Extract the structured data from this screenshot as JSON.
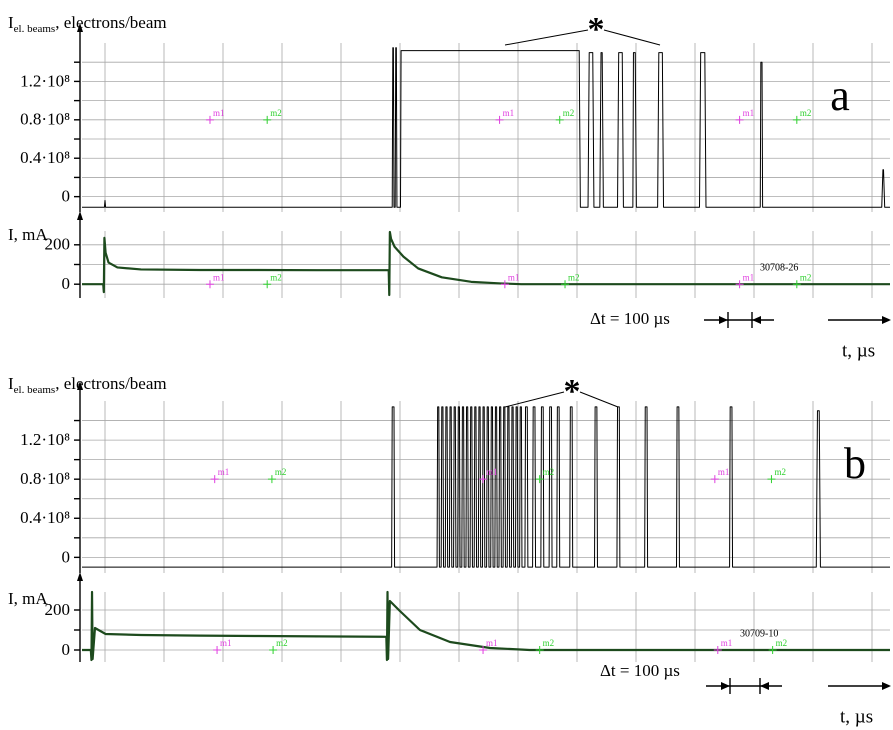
{
  "chart_data": [
    {
      "type": "line",
      "ylabel": "I",
      "ylabel_sub": "el. beams",
      "ylabel_suffix": ", electrons/beam",
      "panel_label": "a",
      "star": "*",
      "grid": true,
      "color": "#000000",
      "xlim": [
        0,
        1370
      ],
      "ylim": [
        -16000000,
        160000000
      ],
      "yticks": [
        {
          "value": 120000000,
          "label": "1.2·10⁸"
        },
        {
          "value": 80000000,
          "label": "0.8·10⁸"
        },
        {
          "value": 40000000,
          "label": "0.4·10⁸"
        },
        0
      ],
      "x": [
        0,
        38,
        39,
        40,
        526,
        527,
        528,
        529,
        531,
        532,
        533,
        534,
        540,
        541,
        843,
        845,
        858,
        860,
        866,
        868,
        878,
        880,
        882,
        884,
        908,
        910,
        916,
        918,
        934,
        935,
        938,
        940,
        976,
        978,
        984,
        986,
        1047,
        1049,
        1056,
        1058,
        1150,
        1151,
        1153,
        1154,
        1356,
        1358,
        1359,
        1361,
        1370
      ],
      "values": [
        -11000000,
        -11000000,
        -4000000,
        -11000000,
        -11000000,
        155000000,
        155000000,
        -11000000,
        -11000000,
        155000000,
        155000000,
        -11000000,
        -11000000,
        152000000,
        152000000,
        -11000000,
        -11000000,
        150000000,
        150000000,
        -11000000,
        -11000000,
        150000000,
        150000000,
        -11000000,
        -11000000,
        150000000,
        150000000,
        -11000000,
        -11000000,
        150000000,
        150000000,
        -11000000,
        -11000000,
        150000000,
        150000000,
        -11000000,
        -11000000,
        150000000,
        150000000,
        -11000000,
        -11000000,
        140000000,
        140000000,
        -11000000,
        -11000000,
        28000000,
        28000000,
        -11000000,
        -11000000
      ],
      "markers": [
        {
          "label": "m1",
          "x": 217,
          "y": 80000000,
          "color": "#e040e0"
        },
        {
          "label": "m2",
          "x": 314,
          "y": 80000000,
          "color": "#30d030"
        },
        {
          "label": "m1",
          "x": 708,
          "y": 80000000,
          "color": "#e040e0"
        },
        {
          "label": "m2",
          "x": 810,
          "y": 80000000,
          "color": "#30d030"
        },
        {
          "label": "m1",
          "x": 1115,
          "y": 80000000,
          "color": "#e040e0"
        },
        {
          "label": "m2",
          "x": 1212,
          "y": 80000000,
          "color": "#30d030"
        }
      ]
    },
    {
      "type": "line",
      "ylabel": "I, mA",
      "id_label": "30708-26",
      "delta_label": "Δt = 100 µs",
      "time_label": "t, µs",
      "grid": true,
      "color": "#1d4a1d",
      "xlim": [
        0,
        1370
      ],
      "ylim": [
        -70,
        270
      ],
      "yticks": [
        200,
        0
      ],
      "x": [
        0,
        36,
        37,
        38,
        40,
        45,
        60,
        100,
        200,
        300,
        400,
        520,
        521,
        522,
        524,
        530,
        545,
        570,
        610,
        660,
        710,
        745,
        1370
      ],
      "values": [
        0,
        0,
        -40,
        235,
        160,
        110,
        85,
        75,
        72,
        72,
        71,
        71,
        -55,
        265,
        230,
        190,
        140,
        80,
        35,
        12,
        4,
        0,
        0
      ],
      "markers": [
        {
          "label": "m1",
          "x": 217,
          "y": 0,
          "color": "#e040e0"
        },
        {
          "label": "m2",
          "x": 314,
          "y": 0,
          "color": "#30d030"
        },
        {
          "label": "m1",
          "x": 717,
          "y": 0,
          "color": "#e040e0"
        },
        {
          "label": "m2",
          "x": 819,
          "y": 0,
          "color": "#30d030"
        },
        {
          "label": "m1",
          "x": 1115,
          "y": 0,
          "color": "#e040e0"
        },
        {
          "label": "m2",
          "x": 1212,
          "y": 0,
          "color": "#30d030"
        }
      ]
    },
    {
      "type": "line",
      "ylabel": "I",
      "ylabel_sub": "el. beams",
      "ylabel_suffix": ", electrons/beam",
      "panel_label": "b",
      "star": "*",
      "grid": true,
      "color": "#000000",
      "xlim": [
        0,
        1370
      ],
      "ylim": [
        -16000000,
        160000000
      ],
      "yticks": [
        {
          "value": 120000000,
          "label": "1.2·10⁸"
        },
        {
          "value": 80000000,
          "label": "0.8·10⁸"
        },
        {
          "value": 40000000,
          "label": "0.4·10⁸"
        },
        0
      ],
      "x": [
        0,
        525,
        526,
        529,
        530,
        602,
        603,
        605,
        606,
        609,
        610,
        612,
        613,
        616,
        617,
        619,
        620,
        623,
        624,
        626,
        627,
        630,
        631,
        633,
        634,
        637,
        638,
        640,
        641,
        644,
        645,
        647,
        648,
        651,
        652,
        654,
        655,
        658,
        659,
        661,
        662,
        665,
        666,
        668,
        669,
        672,
        673,
        675,
        676,
        679,
        680,
        682,
        683,
        686,
        687,
        689,
        690,
        693,
        694,
        696,
        697,
        700,
        701,
        703,
        704,
        707,
        708,
        710,
        711,
        714,
        715,
        717,
        718,
        721,
        722,
        724,
        725,
        728,
        729,
        731,
        732,
        735,
        736,
        738,
        739,
        742,
        743,
        745,
        746,
        751,
        752,
        755,
        756,
        764,
        765,
        768,
        769,
        778,
        779,
        782,
        783,
        792,
        793,
        796,
        797,
        805,
        806,
        809,
        810,
        827,
        828,
        831,
        832,
        869,
        870,
        873,
        874,
        907,
        908,
        911,
        912,
        954,
        955,
        958,
        959,
        1008,
        1009,
        1012,
        1013,
        1098,
        1099,
        1102,
        1103,
        1245,
        1247,
        1250,
        1252,
        1370
      ],
      "values": [
        -10000000,
        -10000000,
        154000000,
        154000000,
        -10000000,
        -10000000,
        154000000,
        154000000,
        -10000000,
        -10000000,
        154000000,
        154000000,
        -10000000,
        -10000000,
        154000000,
        154000000,
        -10000000,
        -10000000,
        154000000,
        154000000,
        -10000000,
        -10000000,
        154000000,
        154000000,
        -10000000,
        -10000000,
        154000000,
        154000000,
        -10000000,
        -10000000,
        154000000,
        154000000,
        -10000000,
        -10000000,
        154000000,
        154000000,
        -10000000,
        -10000000,
        154000000,
        154000000,
        -10000000,
        -10000000,
        154000000,
        154000000,
        -10000000,
        -10000000,
        154000000,
        154000000,
        -10000000,
        -10000000,
        154000000,
        154000000,
        -10000000,
        -10000000,
        154000000,
        154000000,
        -10000000,
        -10000000,
        154000000,
        154000000,
        -10000000,
        -10000000,
        154000000,
        154000000,
        -10000000,
        -10000000,
        154000000,
        154000000,
        -10000000,
        -10000000,
        154000000,
        154000000,
        -10000000,
        -10000000,
        154000000,
        154000000,
        -10000000,
        -10000000,
        154000000,
        154000000,
        -10000000,
        -10000000,
        154000000,
        154000000,
        -10000000,
        -10000000,
        154000000,
        154000000,
        -10000000,
        -10000000,
        154000000,
        154000000,
        -10000000,
        -10000000,
        154000000,
        154000000,
        -10000000,
        -10000000,
        154000000,
        154000000,
        -10000000,
        -10000000,
        154000000,
        154000000,
        -10000000,
        -10000000,
        154000000,
        154000000,
        -10000000,
        -10000000,
        154000000,
        154000000,
        -10000000,
        -10000000,
        154000000,
        154000000,
        -10000000,
        -10000000,
        154000000,
        154000000,
        -10000000,
        -10000000,
        154000000,
        154000000,
        -10000000,
        -10000000,
        154000000,
        154000000,
        -10000000,
        -10000000,
        154000000,
        154000000,
        -10000000,
        -10000000,
        150000000,
        150000000,
        -10000000,
        -10000000
      ],
      "markers": [
        {
          "label": "m1",
          "x": 225,
          "y": 80000000,
          "color": "#e040e0"
        },
        {
          "label": "m2",
          "x": 322,
          "y": 80000000,
          "color": "#30d030"
        },
        {
          "label": "m1",
          "x": 680,
          "y": 80000000,
          "color": "#e040e0"
        },
        {
          "label": "m2",
          "x": 776,
          "y": 80000000,
          "color": "#30d030"
        },
        {
          "label": "m1",
          "x": 1073,
          "y": 80000000,
          "color": "#e040e0"
        },
        {
          "label": "m2",
          "x": 1169,
          "y": 80000000,
          "color": "#30d030"
        }
      ]
    },
    {
      "type": "line",
      "ylabel": "I, mA",
      "id_label": "30709-10",
      "delta_label": "Δt = 100 µs",
      "time_label": "t, µs",
      "grid": true,
      "color": "#1d4a1d",
      "xlim": [
        0,
        1370
      ],
      "ylim": [
        -60,
        290
      ],
      "yticks": [
        200,
        0
      ],
      "x": [
        0,
        15,
        16,
        17,
        18,
        22,
        40,
        100,
        200,
        300,
        400,
        516,
        517,
        518,
        519,
        522,
        539,
        573,
        624,
        692,
        759,
        1370
      ],
      "values": [
        0,
        0,
        -50,
        290,
        -45,
        110,
        80,
        75,
        72,
        70,
        68,
        66,
        -50,
        290,
        -45,
        245,
        195,
        100,
        40,
        10,
        0,
        0
      ],
      "markers": [
        {
          "label": "m1",
          "x": 229,
          "y": 0,
          "color": "#e040e0"
        },
        {
          "label": "m2",
          "x": 324,
          "y": 0,
          "color": "#30d030"
        },
        {
          "label": "m1",
          "x": 680,
          "y": 0,
          "color": "#e040e0"
        },
        {
          "label": "m2",
          "x": 776,
          "y": 0,
          "color": "#30d030"
        },
        {
          "label": "m1",
          "x": 1078,
          "y": 0,
          "color": "#e040e0"
        },
        {
          "label": "m2",
          "x": 1171,
          "y": 0,
          "color": "#30d030"
        }
      ]
    }
  ]
}
